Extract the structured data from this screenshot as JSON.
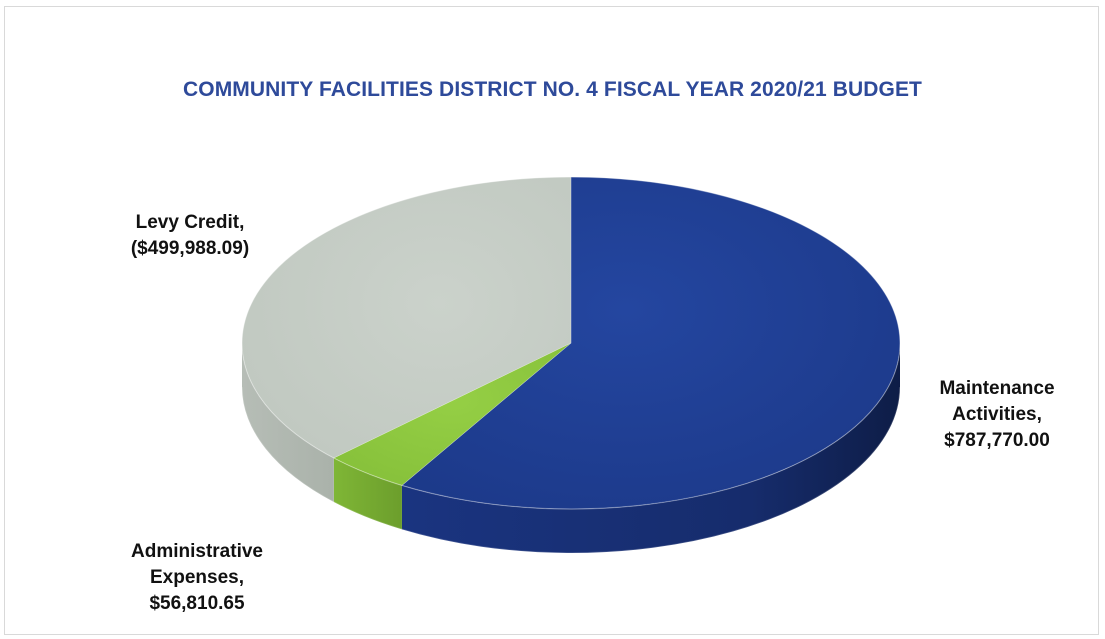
{
  "chart_data": {
    "type": "pie",
    "title": "COMMUNITY FACILITIES DISTRICT NO. 4 FISCAL YEAR 2020/21 BUDGET",
    "categories": [
      "Maintenance Activities",
      "Administrative Expenses",
      "Levy Credit"
    ],
    "values": [
      787770.0,
      56810.65,
      499988.09
    ],
    "value_labels": [
      "$787,770.00",
      "$56,810.65",
      "($499,988.09)"
    ],
    "data_labels": [
      [
        "Maintenance",
        "Activities,",
        "$787,770.00"
      ],
      [
        "Administrative",
        "Expenses,",
        "$56,810.65"
      ],
      [
        "Levy Credit,",
        "($499,988.09)"
      ]
    ],
    "colors": [
      "#1f3d8f",
      "#8cc63f",
      "#c4ccc4"
    ],
    "style": "3d-pie",
    "legend": "none"
  }
}
